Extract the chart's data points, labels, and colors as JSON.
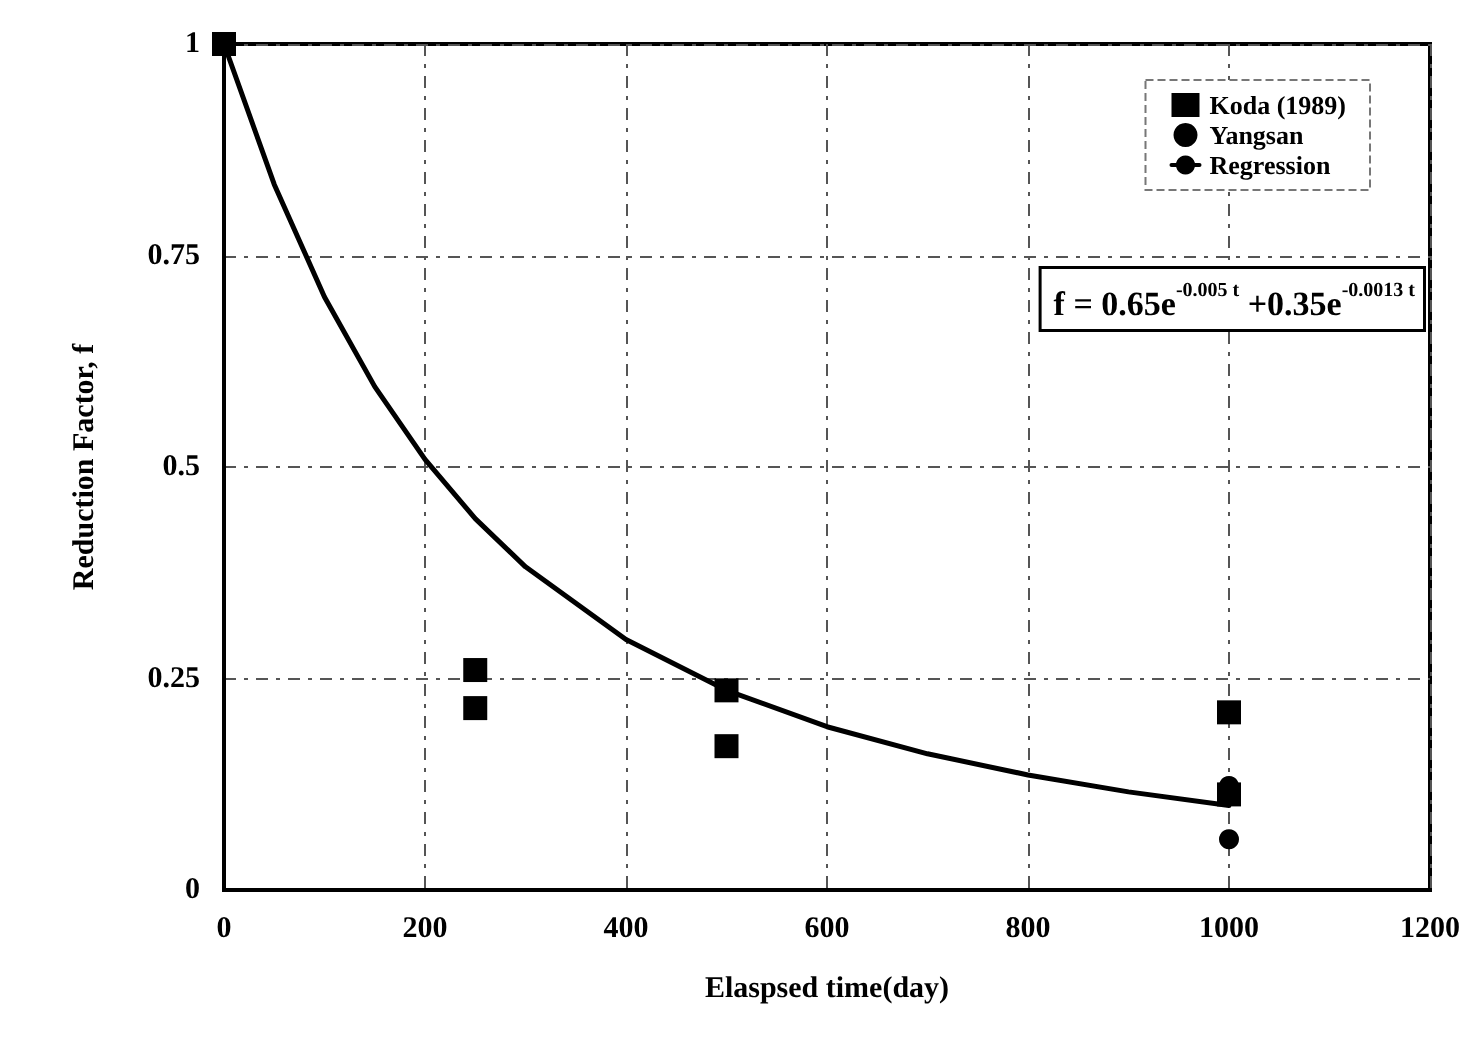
{
  "chart_data": {
    "type": "scatter",
    "xlabel": "Elaspsed time(day)",
    "ylabel": "Reduction Factor, f",
    "xlim": [
      0,
      1200
    ],
    "xticks": [
      0,
      200,
      400,
      600,
      800,
      1000,
      1200
    ],
    "ylim": [
      0,
      1
    ],
    "yticks": [
      0,
      0.25,
      0.5,
      0.75,
      1
    ],
    "grid": true,
    "legend": "top right",
    "annotations": [
      "f = 0.65e$^{-0.005 t}$ +0.35e$^{-0.0013 t}$"
    ],
    "series": [
      {
        "name": "Koda (1989)",
        "type": "scatter",
        "marker": "square",
        "color": "#000000",
        "x": [
          0,
          250,
          250,
          500,
          500,
          1000,
          1000
        ],
        "values": [
          1,
          0.26,
          0.215,
          0.236,
          0.17,
          0.21,
          0.113
        ]
      },
      {
        "name": "Yangsan",
        "type": "scatter",
        "marker": "circle",
        "color": "#000000",
        "x": [
          1000,
          1000
        ],
        "values": [
          0.123,
          0.06
        ]
      },
      {
        "name": "Regression",
        "type": "line",
        "marker": "none",
        "line_style": "solid",
        "color": "#000000",
        "x": [
          0,
          50,
          100,
          150,
          200,
          250,
          300,
          400,
          500,
          600,
          700,
          800,
          900,
          1000
        ],
        "values": [
          1,
          0.834,
          0.701,
          0.595,
          0.509,
          0.439,
          0.382,
          0.296,
          0.236,
          0.193,
          0.161,
          0.136,
          0.116,
          0.1
        ]
      }
    ]
  }
}
